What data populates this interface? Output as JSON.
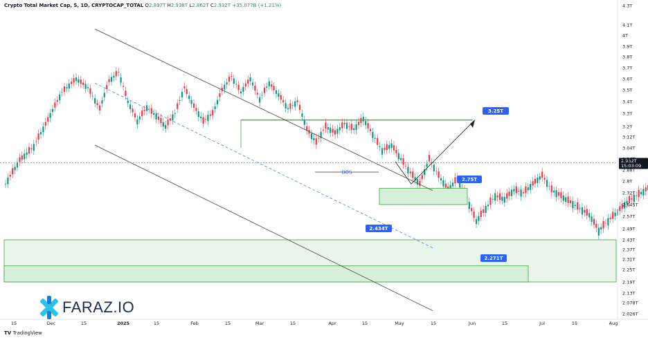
{
  "header": {
    "symbol": "Crypto Total Market Cap, 5, 1D, CRYPTOCAP_TOTAL",
    "o_label": "O",
    "o_value": "2.897T",
    "h_label": "H",
    "h_value": "2.938T",
    "l_label": "L",
    "l_value": "2.862T",
    "c_label": "C",
    "c_value": "2.932T",
    "change": "+35.077B (+1.21%)"
  },
  "brand": {
    "name": "FARAZ.IO",
    "platform": "TradingView",
    "platform_icon": "tradingview-logo-icon"
  },
  "colors": {
    "up": "#089981",
    "down": "#f23645",
    "zone_fill": "#d6efd8",
    "zone_stroke": "#43a047",
    "label_bg": "#2962ff",
    "price_tag": "#131722"
  },
  "chart_data": {
    "type": "candlestick",
    "y_scale": "log",
    "y_ticks": [
      "4.3T",
      "4.1T",
      "4T",
      "3.9T",
      "3.8T",
      "3.7T",
      "3.6T",
      "3.5T",
      "3.4T",
      "3.3T",
      "3.2T",
      "3.12T",
      "3.04T",
      "2.96T",
      "2.88T",
      "2.8T",
      "2.72T",
      "2.645T",
      "2.57T",
      "2.49T",
      "2.43T",
      "2.37T",
      "2.31T",
      "2.25T",
      "2.19T",
      "2.13T",
      "2.078T",
      "2.026T"
    ],
    "x_ticks": [
      "15",
      "Dec",
      "15",
      "2025",
      "15",
      "Feb",
      "15",
      "Mar",
      "15",
      "Apr",
      "15",
      "May",
      "15",
      "Jun",
      "15",
      "Jul",
      "15",
      "Aug"
    ],
    "last_price": "2.932T",
    "countdown": "15:03:09",
    "annotations": [
      "BOS",
      "3.25T",
      "2.75T",
      "2.434T",
      "2.271T"
    ],
    "ohlc_summary": {
      "open": "2.897T",
      "high": "2.938T",
      "low": "2.862T",
      "close": "2.932T"
    }
  }
}
